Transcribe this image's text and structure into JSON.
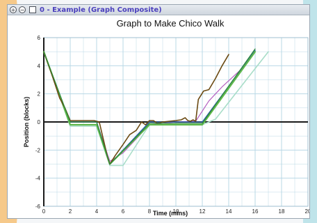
{
  "window": {
    "title": "0 - Example (Graph Composite)",
    "icons": [
      "zoom-in-icon",
      "zoom-out-icon",
      "checkbox-icon"
    ]
  },
  "colors": {
    "background_left": "#f6c98a",
    "background_right": "#bfe4ea",
    "grid": "#b9d8e6",
    "axis": "#1a1a1a",
    "title_bar": "#cfd6de"
  },
  "chart_data": {
    "type": "line",
    "title": "Graph to Make Chico Walk",
    "xlabel": "Time (mins)",
    "ylabel": "Position (blocks)",
    "xlim": [
      0,
      20
    ],
    "ylim": [
      -6,
      6
    ],
    "xticks": [
      0,
      2,
      4,
      6,
      8,
      10,
      12,
      14,
      16,
      18,
      20
    ],
    "yticks": [
      -6,
      -4,
      -2,
      0,
      2,
      4,
      6
    ],
    "grid": true,
    "legend": "none",
    "series": [
      {
        "color": "#a8ddc8",
        "width": 1.6,
        "points": [
          [
            0,
            5
          ],
          [
            2,
            -0.3
          ],
          [
            4,
            -0.3
          ],
          [
            5,
            -3.1
          ],
          [
            6,
            -3.1
          ],
          [
            8,
            -0.2
          ],
          [
            12,
            -0.2
          ],
          [
            13,
            0.2
          ],
          [
            17,
            5
          ]
        ]
      },
      {
        "color": "#b45fc0",
        "width": 1.2,
        "points": [
          [
            0,
            5
          ],
          [
            1.2,
            1.8
          ],
          [
            2,
            0
          ],
          [
            3,
            0
          ],
          [
            4,
            0
          ],
          [
            5,
            -2.8
          ],
          [
            6,
            -2.2
          ],
          [
            7,
            -1.2
          ],
          [
            8,
            -0.2
          ],
          [
            10,
            0
          ],
          [
            11.5,
            0.05
          ],
          [
            12.5,
            1.5
          ],
          [
            13.5,
            2.5
          ],
          [
            15,
            3.8
          ],
          [
            16,
            5
          ]
        ]
      },
      {
        "color": "#2f5fa8",
        "width": 1.4,
        "points": [
          [
            0,
            5
          ],
          [
            1.5,
            1.2
          ],
          [
            2,
            0
          ],
          [
            4,
            0
          ],
          [
            5,
            -3
          ],
          [
            8,
            0
          ],
          [
            12,
            0
          ],
          [
            16,
            5.1
          ]
        ]
      },
      {
        "color": "#5fb84a",
        "width": 2.2,
        "points": [
          [
            0,
            5
          ],
          [
            2,
            -0.2
          ],
          [
            4,
            -0.2
          ],
          [
            5,
            -3
          ],
          [
            8,
            -0.2
          ],
          [
            12,
            -0.2
          ],
          [
            16,
            5
          ]
        ]
      },
      {
        "color": "#6b4a12",
        "width": 1.6,
        "points": [
          [
            0,
            5
          ],
          [
            0.6,
            3.4
          ],
          [
            1.2,
            1.7
          ],
          [
            1.6,
            1
          ],
          [
            2,
            0.1
          ],
          [
            3,
            0.1
          ],
          [
            3.8,
            0.1
          ],
          [
            4.2,
            0
          ],
          [
            4.5,
            -1.2
          ],
          [
            4.8,
            -2.4
          ],
          [
            5,
            -3
          ],
          [
            5.4,
            -2.4
          ],
          [
            6,
            -1.6
          ],
          [
            6.5,
            -0.9
          ],
          [
            7,
            -0.6
          ],
          [
            7.4,
            0
          ],
          [
            7.7,
            -0.2
          ],
          [
            8,
            0.1
          ],
          [
            8.3,
            0.1
          ],
          [
            8.6,
            -0.1
          ],
          [
            9,
            0
          ],
          [
            9.5,
            0.05
          ],
          [
            10,
            0.1
          ],
          [
            10.4,
            0.15
          ],
          [
            10.7,
            0.3
          ],
          [
            10.9,
            0.1
          ],
          [
            11.1,
            0.05
          ],
          [
            11.3,
            0.15
          ],
          [
            11.5,
            0.05
          ],
          [
            11.7,
            1.6
          ],
          [
            12.1,
            2.2
          ],
          [
            12.5,
            2.3
          ],
          [
            13,
            3.1
          ],
          [
            13.5,
            4
          ],
          [
            14,
            4.8
          ]
        ]
      },
      {
        "color": "#2e8a3a",
        "width": 1.2,
        "points": [
          [
            0,
            5
          ],
          [
            2,
            0
          ],
          [
            4,
            0
          ],
          [
            5,
            -3
          ],
          [
            8,
            -0.1
          ],
          [
            12,
            -0.1
          ],
          [
            16,
            5.2
          ]
        ]
      }
    ]
  }
}
